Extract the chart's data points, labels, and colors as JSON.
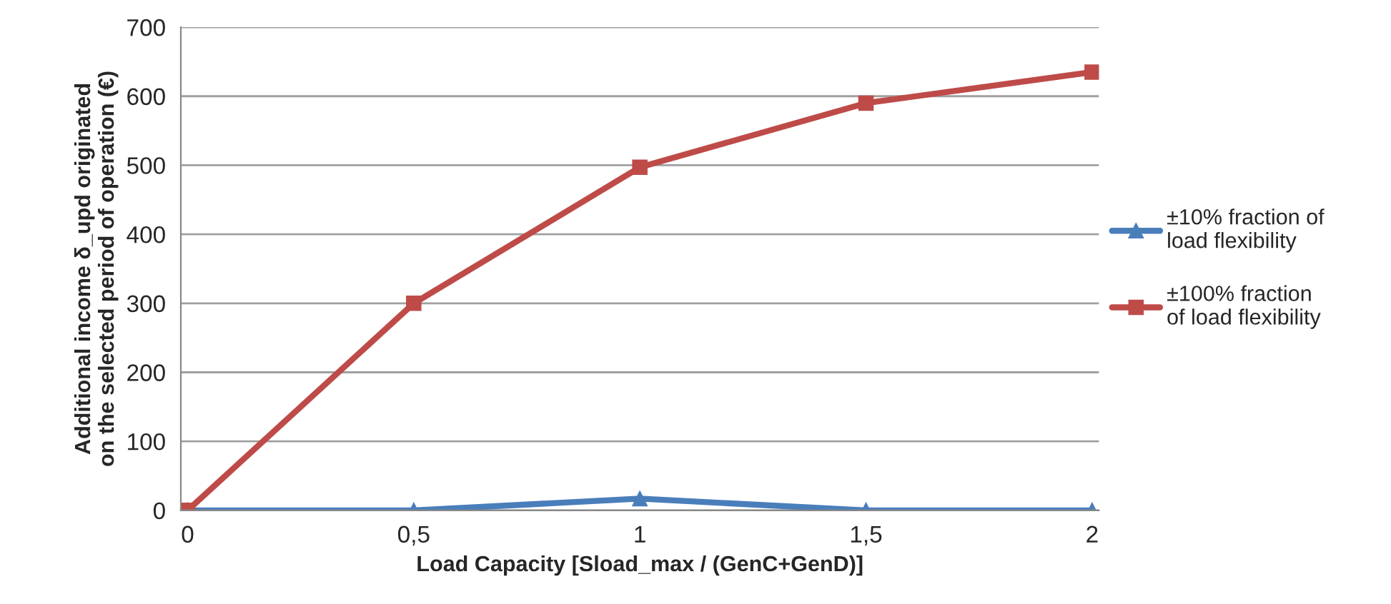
{
  "chart_data": {
    "type": "line",
    "xlabel": "Load Capacity [Sload_max / (GenC+GenD)]",
    "ylabel": "Additional income δ_upd originated\non the selected period of operation (€)",
    "categories": [
      "0",
      "0,5",
      "1",
      "1,5",
      "2"
    ],
    "series": [
      {
        "name": "±10% fraction of\nload flexibility",
        "color": "#4a7ebb",
        "values": [
          0,
          0,
          17,
          0,
          0
        ],
        "marker": "triangle"
      },
      {
        "name": "±100% fraction\nof load flexibility",
        "color": "#be4b48",
        "values": [
          0,
          300,
          497,
          590,
          635
        ],
        "marker": "square"
      }
    ],
    "ylim": [
      0,
      700
    ],
    "yticks": [
      0,
      100,
      200,
      300,
      400,
      500,
      600,
      700
    ],
    "grid": "y",
    "legend": "right",
    "line_style": "solid"
  }
}
